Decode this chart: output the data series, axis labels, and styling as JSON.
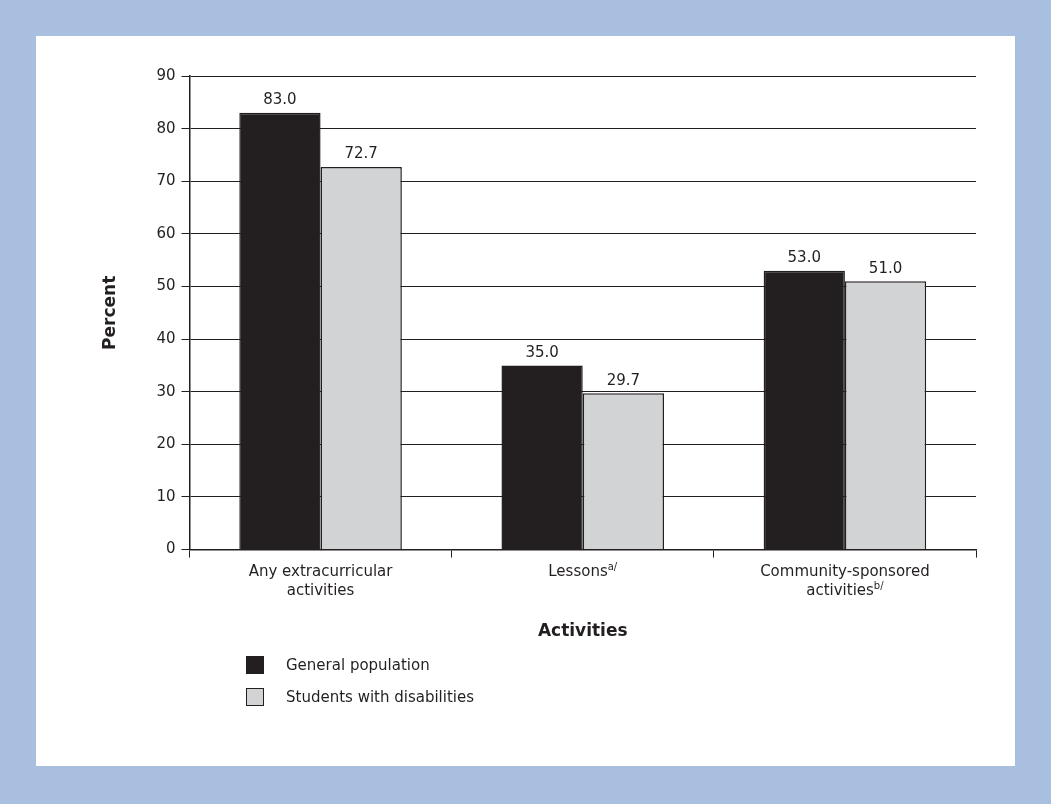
{
  "chart_data": {
    "type": "bar",
    "xlabel": "Activities",
    "ylabel": "Percent",
    "categories": [
      "Any extracurricular activities",
      "Lessons$^{a/}$",
      "Community-sponsored activities$^{b/}$"
    ],
    "series": [
      {
        "name": "General population",
        "color": "#231f20",
        "values": [
          83.0,
          35.0,
          53.0
        ],
        "value_labels": [
          "83.0",
          "35.0",
          "53.0"
        ]
      },
      {
        "name": "Students with disabilities",
        "color": "#d1d3d4",
        "values": [
          72.7,
          29.7,
          51.0
        ],
        "value_labels": [
          "72.7",
          "29.7",
          "51.0"
        ]
      }
    ],
    "ylim": [
      0,
      90
    ],
    "yticks": [
      0,
      10,
      20,
      30,
      40,
      50,
      60,
      70,
      80,
      90
    ],
    "grid": "y",
    "legend": "bottom left"
  }
}
